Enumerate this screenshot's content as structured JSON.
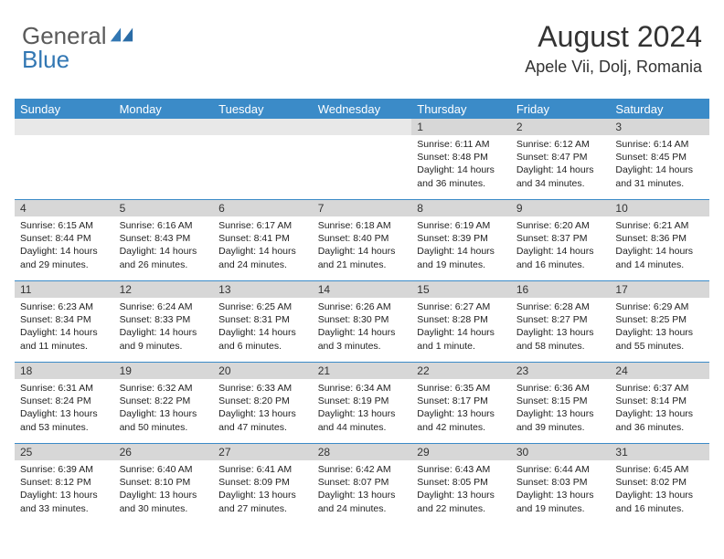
{
  "logo": {
    "text1": "General",
    "text2": "Blue"
  },
  "header": {
    "month": "August 2024",
    "location": "Apele Vii, Dolj, Romania"
  },
  "colors": {
    "header_bg": "#3b8bc8",
    "header_text": "#ffffff",
    "daynum_bg": "#d7d7d7",
    "week_border": "#3b8bc8",
    "logo_gray": "#5a5a5a",
    "logo_blue": "#3277b3"
  },
  "day_names": [
    "Sunday",
    "Monday",
    "Tuesday",
    "Wednesday",
    "Thursday",
    "Friday",
    "Saturday"
  ],
  "weeks": [
    [
      {
        "blank": true
      },
      {
        "blank": true
      },
      {
        "blank": true
      },
      {
        "blank": true
      },
      {
        "n": "1",
        "sr": "6:11 AM",
        "ss": "8:48 PM",
        "dl": "14 hours and 36 minutes."
      },
      {
        "n": "2",
        "sr": "6:12 AM",
        "ss": "8:47 PM",
        "dl": "14 hours and 34 minutes."
      },
      {
        "n": "3",
        "sr": "6:14 AM",
        "ss": "8:45 PM",
        "dl": "14 hours and 31 minutes."
      }
    ],
    [
      {
        "n": "4",
        "sr": "6:15 AM",
        "ss": "8:44 PM",
        "dl": "14 hours and 29 minutes."
      },
      {
        "n": "5",
        "sr": "6:16 AM",
        "ss": "8:43 PM",
        "dl": "14 hours and 26 minutes."
      },
      {
        "n": "6",
        "sr": "6:17 AM",
        "ss": "8:41 PM",
        "dl": "14 hours and 24 minutes."
      },
      {
        "n": "7",
        "sr": "6:18 AM",
        "ss": "8:40 PM",
        "dl": "14 hours and 21 minutes."
      },
      {
        "n": "8",
        "sr": "6:19 AM",
        "ss": "8:39 PM",
        "dl": "14 hours and 19 minutes."
      },
      {
        "n": "9",
        "sr": "6:20 AM",
        "ss": "8:37 PM",
        "dl": "14 hours and 16 minutes."
      },
      {
        "n": "10",
        "sr": "6:21 AM",
        "ss": "8:36 PM",
        "dl": "14 hours and 14 minutes."
      }
    ],
    [
      {
        "n": "11",
        "sr": "6:23 AM",
        "ss": "8:34 PM",
        "dl": "14 hours and 11 minutes."
      },
      {
        "n": "12",
        "sr": "6:24 AM",
        "ss": "8:33 PM",
        "dl": "14 hours and 9 minutes."
      },
      {
        "n": "13",
        "sr": "6:25 AM",
        "ss": "8:31 PM",
        "dl": "14 hours and 6 minutes."
      },
      {
        "n": "14",
        "sr": "6:26 AM",
        "ss": "8:30 PM",
        "dl": "14 hours and 3 minutes."
      },
      {
        "n": "15",
        "sr": "6:27 AM",
        "ss": "8:28 PM",
        "dl": "14 hours and 1 minute."
      },
      {
        "n": "16",
        "sr": "6:28 AM",
        "ss": "8:27 PM",
        "dl": "13 hours and 58 minutes."
      },
      {
        "n": "17",
        "sr": "6:29 AM",
        "ss": "8:25 PM",
        "dl": "13 hours and 55 minutes."
      }
    ],
    [
      {
        "n": "18",
        "sr": "6:31 AM",
        "ss": "8:24 PM",
        "dl": "13 hours and 53 minutes."
      },
      {
        "n": "19",
        "sr": "6:32 AM",
        "ss": "8:22 PM",
        "dl": "13 hours and 50 minutes."
      },
      {
        "n": "20",
        "sr": "6:33 AM",
        "ss": "8:20 PM",
        "dl": "13 hours and 47 minutes."
      },
      {
        "n": "21",
        "sr": "6:34 AM",
        "ss": "8:19 PM",
        "dl": "13 hours and 44 minutes."
      },
      {
        "n": "22",
        "sr": "6:35 AM",
        "ss": "8:17 PM",
        "dl": "13 hours and 42 minutes."
      },
      {
        "n": "23",
        "sr": "6:36 AM",
        "ss": "8:15 PM",
        "dl": "13 hours and 39 minutes."
      },
      {
        "n": "24",
        "sr": "6:37 AM",
        "ss": "8:14 PM",
        "dl": "13 hours and 36 minutes."
      }
    ],
    [
      {
        "n": "25",
        "sr": "6:39 AM",
        "ss": "8:12 PM",
        "dl": "13 hours and 33 minutes."
      },
      {
        "n": "26",
        "sr": "6:40 AM",
        "ss": "8:10 PM",
        "dl": "13 hours and 30 minutes."
      },
      {
        "n": "27",
        "sr": "6:41 AM",
        "ss": "8:09 PM",
        "dl": "13 hours and 27 minutes."
      },
      {
        "n": "28",
        "sr": "6:42 AM",
        "ss": "8:07 PM",
        "dl": "13 hours and 24 minutes."
      },
      {
        "n": "29",
        "sr": "6:43 AM",
        "ss": "8:05 PM",
        "dl": "13 hours and 22 minutes."
      },
      {
        "n": "30",
        "sr": "6:44 AM",
        "ss": "8:03 PM",
        "dl": "13 hours and 19 minutes."
      },
      {
        "n": "31",
        "sr": "6:45 AM",
        "ss": "8:02 PM",
        "dl": "13 hours and 16 minutes."
      }
    ]
  ],
  "labels": {
    "sunrise": "Sunrise:",
    "sunset": "Sunset:",
    "daylight": "Daylight:"
  }
}
